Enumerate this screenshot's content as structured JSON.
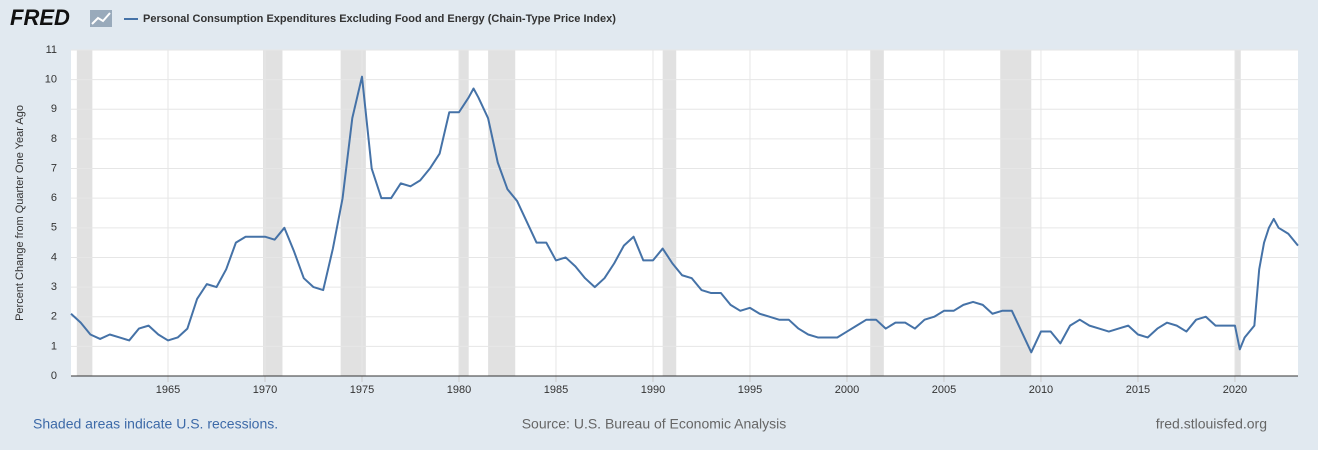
{
  "brand": "FRED",
  "chart_data": {
    "type": "line",
    "series": [
      {
        "name": "Personal Consumption Expenditures Excluding Food and Energy (Chain-Type Price Index)",
        "color": "#4572a7",
        "x": [
          1960,
          1960.5,
          1961,
          1961.5,
          1962,
          1962.5,
          1963,
          1963.5,
          1964,
          1964.5,
          1965,
          1965.5,
          1966,
          1966.5,
          1967,
          1967.5,
          1968,
          1968.5,
          1969,
          1969.5,
          1970,
          1970.5,
          1971,
          1971.5,
          1972,
          1972.5,
          1973,
          1973.5,
          1974,
          1974.5,
          1975,
          1975.5,
          1976,
          1976.5,
          1977,
          1977.5,
          1978,
          1978.5,
          1979,
          1979.5,
          1980,
          1980.5,
          1980.75,
          1981,
          1981.5,
          1982,
          1982.5,
          1983,
          1983.5,
          1984,
          1984.5,
          1985,
          1985.5,
          1986,
          1986.5,
          1987,
          1987.5,
          1988,
          1988.5,
          1989,
          1989.5,
          1990,
          1990.5,
          1991,
          1991.5,
          1992,
          1992.5,
          1993,
          1993.5,
          1994,
          1994.5,
          1995,
          1995.5,
          1996,
          1996.5,
          1997,
          1997.5,
          1998,
          1998.5,
          1999,
          1999.5,
          2000,
          2000.5,
          2001,
          2001.5,
          2002,
          2002.5,
          2003,
          2003.5,
          2004,
          2004.5,
          2005,
          2005.5,
          2006,
          2006.5,
          2007,
          2007.5,
          2008,
          2008.5,
          2009,
          2009.5,
          2010,
          2010.5,
          2011,
          2011.5,
          2012,
          2012.5,
          2013,
          2013.5,
          2014,
          2014.5,
          2015,
          2015.5,
          2016,
          2016.5,
          2017,
          2017.5,
          2018,
          2018.5,
          2019,
          2019.5,
          2020,
          2020.25,
          2020.5,
          2021,
          2021.25,
          2021.5,
          2021.75,
          2022,
          2022.25,
          2022.75,
          2023.25
        ],
        "values": [
          2.1,
          1.8,
          1.4,
          1.25,
          1.4,
          1.3,
          1.2,
          1.6,
          1.7,
          1.4,
          1.2,
          1.3,
          1.6,
          2.6,
          3.1,
          3.0,
          3.6,
          4.5,
          4.7,
          4.7,
          4.7,
          4.6,
          5.0,
          4.2,
          3.3,
          3.0,
          2.9,
          4.3,
          6.0,
          8.7,
          10.1,
          7.0,
          6.0,
          6.0,
          6.5,
          6.4,
          6.6,
          7.0,
          7.5,
          8.9,
          8.9,
          9.4,
          9.7,
          9.4,
          8.7,
          7.2,
          6.3,
          5.9,
          5.2,
          4.5,
          4.5,
          3.9,
          4.0,
          3.7,
          3.3,
          3.0,
          3.3,
          3.8,
          4.4,
          4.7,
          3.9,
          3.9,
          4.3,
          3.8,
          3.4,
          3.3,
          2.9,
          2.8,
          2.8,
          2.4,
          2.2,
          2.3,
          2.1,
          2.0,
          1.9,
          1.9,
          1.6,
          1.4,
          1.3,
          1.3,
          1.3,
          1.5,
          1.7,
          1.9,
          1.9,
          1.6,
          1.8,
          1.8,
          1.6,
          1.9,
          2.0,
          2.2,
          2.2,
          2.4,
          2.5,
          2.4,
          2.1,
          2.2,
          2.2,
          1.5,
          0.8,
          1.5,
          1.5,
          1.1,
          1.7,
          1.9,
          1.7,
          1.6,
          1.5,
          1.6,
          1.7,
          1.4,
          1.3,
          1.6,
          1.8,
          1.7,
          1.5,
          1.9,
          2.0,
          1.7,
          1.7,
          1.7,
          0.9,
          1.3,
          1.7,
          3.6,
          4.5,
          5.0,
          5.3,
          5.0,
          4.8,
          4.4
        ]
      }
    ],
    "recessions": [
      [
        1960.3,
        1961.1
      ],
      [
        1969.9,
        1970.9
      ],
      [
        1973.9,
        1975.2
      ],
      [
        1980.0,
        1980.5
      ],
      [
        1981.5,
        1982.9
      ],
      [
        1990.5,
        1991.2
      ],
      [
        2001.2,
        2001.9
      ],
      [
        2007.9,
        2009.5
      ],
      [
        2020.0,
        2020.3
      ]
    ],
    "recession_color": "#e1e1e1",
    "xlim": [
      1960,
      2023.25
    ],
    "xticks": [
      1965,
      1970,
      1975,
      1980,
      1985,
      1990,
      1995,
      2000,
      2005,
      2010,
      2015,
      2020
    ],
    "ylabel": "Percent Change from Quarter One Year Ago",
    "ylim": [
      0,
      11
    ],
    "yticks": [
      0,
      1,
      2,
      3,
      4,
      5,
      6,
      7,
      8,
      9,
      10,
      11
    ],
    "grid": true
  },
  "footer": {
    "left": "Shaded areas indicate U.S. recessions.",
    "center": "Source: U.S. Bureau of Economic Analysis",
    "right": "fred.stlouisfed.org"
  }
}
